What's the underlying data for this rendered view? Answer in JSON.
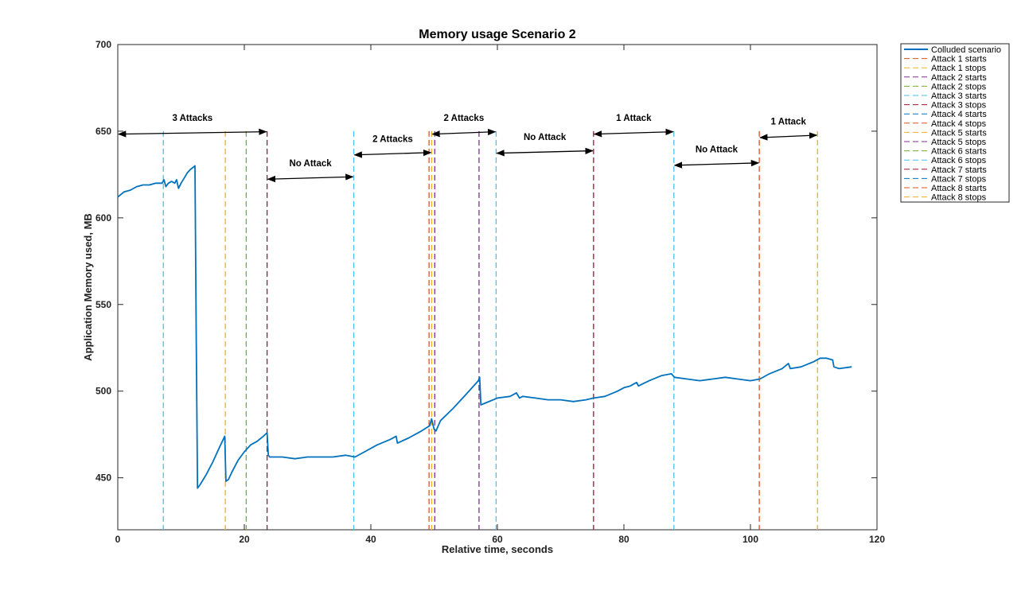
{
  "chart_data": {
    "type": "line",
    "title": "Memory usage Scenario 2",
    "xlabel": "Relative time, seconds",
    "ylabel": "Application Memory used, MB",
    "xlim": [
      0,
      120
    ],
    "ylim": [
      420,
      700
    ],
    "xticks": [
      0,
      20,
      40,
      60,
      80,
      100,
      120
    ],
    "yticks": [
      450,
      500,
      550,
      600,
      650,
      700
    ],
    "grid": false,
    "legend_position": "top-right",
    "series": [
      {
        "name": "Colluded scenario",
        "color": "#0072BD",
        "x": [
          0,
          1,
          2,
          3,
          4,
          5,
          6,
          7,
          7.3,
          7.6,
          8,
          8.5,
          9,
          9.3,
          9.6,
          10,
          10.5,
          11,
          11.5,
          12.2,
          12.4,
          12.6,
          13,
          14,
          15,
          16,
          16.9,
          17.1,
          17.5,
          18,
          19,
          20,
          21,
          22,
          23,
          23.6,
          23.8,
          24,
          26,
          28,
          30,
          32,
          34,
          36,
          37.5,
          39,
          41,
          43,
          44,
          44.2,
          46,
          48,
          49.3,
          49.6,
          50,
          50.3,
          51,
          53,
          55,
          57,
          57.2,
          57.4,
          58,
          60,
          62,
          63,
          63.5,
          64,
          66,
          68,
          70,
          72,
          74,
          75.2,
          77,
          79,
          80,
          81,
          82,
          82.3,
          84,
          86,
          87.5,
          88,
          90,
          92,
          94,
          96,
          98,
          100,
          101.5,
          103,
          105,
          106,
          106.3,
          108,
          110,
          111,
          112,
          113,
          113.2,
          114,
          116
        ],
        "y": [
          612,
          615,
          616,
          618,
          619,
          619,
          620,
          620,
          622,
          618,
          620,
          621,
          620,
          622,
          617,
          620,
          623,
          626,
          628,
          630,
          530,
          444,
          446,
          452,
          459,
          467,
          474,
          448,
          449,
          453,
          460,
          465,
          469,
          471,
          474,
          476,
          463,
          462,
          462,
          461,
          462,
          462,
          462,
          463,
          462,
          465,
          469,
          472,
          474,
          470,
          473,
          477,
          480,
          484,
          478,
          477,
          483,
          490,
          498,
          506,
          508,
          492,
          493,
          496,
          497,
          499,
          496,
          497,
          496,
          495,
          495,
          494,
          495,
          496,
          497,
          500,
          502,
          503,
          505,
          503,
          506,
          509,
          510,
          508,
          507,
          506,
          507,
          508,
          507,
          506,
          507,
          510,
          513,
          516,
          513,
          514,
          517,
          519,
          519,
          518,
          514,
          513,
          514
        ]
      }
    ],
    "attack_lines": [
      {
        "name": "Attack 1 starts",
        "x": 7.2,
        "color": "#4DBEEE"
      },
      {
        "name": "Attack 1 stops",
        "x": 17.0,
        "color": "#EDB120"
      },
      {
        "name": "Attack 2 starts",
        "x": 20.3,
        "color": "#77AC30"
      },
      {
        "name": "Attack 2 stops",
        "x": 23.6,
        "color": "#A2142F"
      },
      {
        "name": "Attack 3 starts",
        "x": 37.3,
        "color": "#4DBEEE"
      },
      {
        "name": "Attack 3 stops",
        "x": 49.2,
        "color": "#D95319"
      },
      {
        "name": "Attack 4 starts",
        "x": 49.6,
        "color": "#EDB120"
      },
      {
        "name": "Attack 4 stops",
        "x": 50.1,
        "color": "#7E2F8E"
      },
      {
        "name": "Attack 5 starts",
        "x": 57.1,
        "color": "#7E2F8E"
      },
      {
        "name": "Attack 5 stops",
        "x": 59.8,
        "color": "#4DBEEE"
      },
      {
        "name": "Attack 6 starts",
        "x": 75.2,
        "color": "#A2142F"
      },
      {
        "name": "Attack 6 stops",
        "x": 87.9,
        "color": "#4DBEEE"
      },
      {
        "name": "Attack 7 starts",
        "x": 101.4,
        "color": "#D95319"
      },
      {
        "name": "Attack 7 stops",
        "x": 110.6,
        "color": "#EDB120"
      }
    ],
    "legend": [
      {
        "label": "Colluded scenario",
        "color": "#0072BD",
        "style": "solid"
      },
      {
        "label": "Attack 1 starts",
        "color": "#D95319",
        "style": "dashed"
      },
      {
        "label": "Attack 1 stops",
        "color": "#EDB120",
        "style": "dashed"
      },
      {
        "label": "Attack 2 starts",
        "color": "#7E2F8E",
        "style": "dashed"
      },
      {
        "label": "Attack 2 stops",
        "color": "#77AC30",
        "style": "dashed"
      },
      {
        "label": "Attack 3 starts",
        "color": "#4DBEEE",
        "style": "dashed"
      },
      {
        "label": "Attack 3 stops",
        "color": "#A2142F",
        "style": "dashed"
      },
      {
        "label": "Attack 4 starts",
        "color": "#0072BD",
        "style": "dashed"
      },
      {
        "label": "Attack 4 stops",
        "color": "#D95319",
        "style": "dashed"
      },
      {
        "label": "Attack 5 starts",
        "color": "#EDB120",
        "style": "dashed"
      },
      {
        "label": "Attack 5 stops",
        "color": "#7E2F8E",
        "style": "dashed"
      },
      {
        "label": "Attack 6 starts",
        "color": "#77AC30",
        "style": "dashed"
      },
      {
        "label": "Attack 6 stops",
        "color": "#4DBEEE",
        "style": "dashed"
      },
      {
        "label": "Attack 7 starts",
        "color": "#A2142F",
        "style": "dashed"
      },
      {
        "label": "Attack 7 stops",
        "color": "#0072BD",
        "style": "dashed"
      },
      {
        "label": "Attack 8 starts",
        "color": "#D95319",
        "style": "dashed"
      },
      {
        "label": "Attack 8 stops",
        "color": "#EDB120",
        "style": "dashed"
      }
    ],
    "annotations": [
      {
        "text": "3 Attacks",
        "x1": 0,
        "x2": 23.6,
        "y": 649
      },
      {
        "text": "No Attack",
        "x1": 23.6,
        "x2": 37.3,
        "y": 623
      },
      {
        "text": "2 Attacks",
        "x1": 37.3,
        "x2": 49.6,
        "y": 637
      },
      {
        "text": "2 Attacks",
        "x1": 49.6,
        "x2": 59.8,
        "y": 649
      },
      {
        "text": "No Attack",
        "x1": 59.8,
        "x2": 75.2,
        "y": 638
      },
      {
        "text": "1 Attack",
        "x1": 75.2,
        "x2": 87.9,
        "y": 649
      },
      {
        "text": "No Attack",
        "x1": 87.9,
        "x2": 101.4,
        "y": 631
      },
      {
        "text": "1 Attack",
        "x1": 101.4,
        "x2": 110.6,
        "y": 647
      }
    ]
  }
}
